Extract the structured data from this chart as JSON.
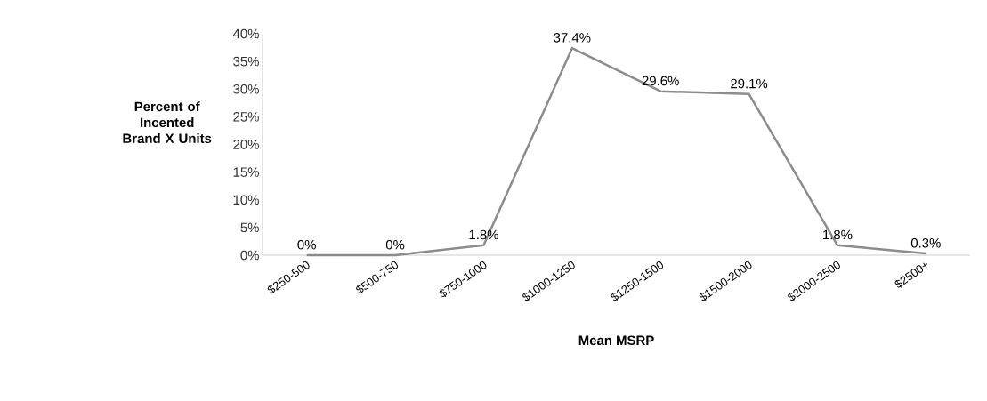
{
  "chart_data": {
    "type": "line",
    "xlabel": "Mean MSRP",
    "ylabel": "Percent of Incented Brand X Units",
    "categories": [
      "$250-500",
      "$500-750",
      "$750-1000",
      "$1000-1250",
      "$1250-1500",
      "$1500-2000",
      "$2000-2500",
      "$2500+"
    ],
    "series": [
      {
        "color": "#8c8c8c",
        "values": [
          0,
          0,
          1.8,
          37.4,
          29.6,
          29.1,
          1.8,
          0.3
        ],
        "value_labels": [
          "0%",
          "0%",
          "1.8%",
          "37.4%",
          "29.6%",
          "29.1%",
          "1.8%",
          "0.3%"
        ]
      }
    ],
    "ylim": [
      0,
      40
    ],
    "yticks": [
      {
        "value": 0,
        "label": "0%"
      },
      {
        "value": 5,
        "label": "5%"
      },
      {
        "value": 10,
        "label": "10%"
      },
      {
        "value": 15,
        "label": "15%"
      },
      {
        "value": 20,
        "label": "20%"
      },
      {
        "value": 25,
        "label": "25%"
      },
      {
        "value": 30,
        "label": "30%"
      },
      {
        "value": 35,
        "label": "35%"
      },
      {
        "value": 40,
        "label": "40%"
      }
    ],
    "grid": false,
    "marker": "none",
    "line_style": "solid"
  }
}
